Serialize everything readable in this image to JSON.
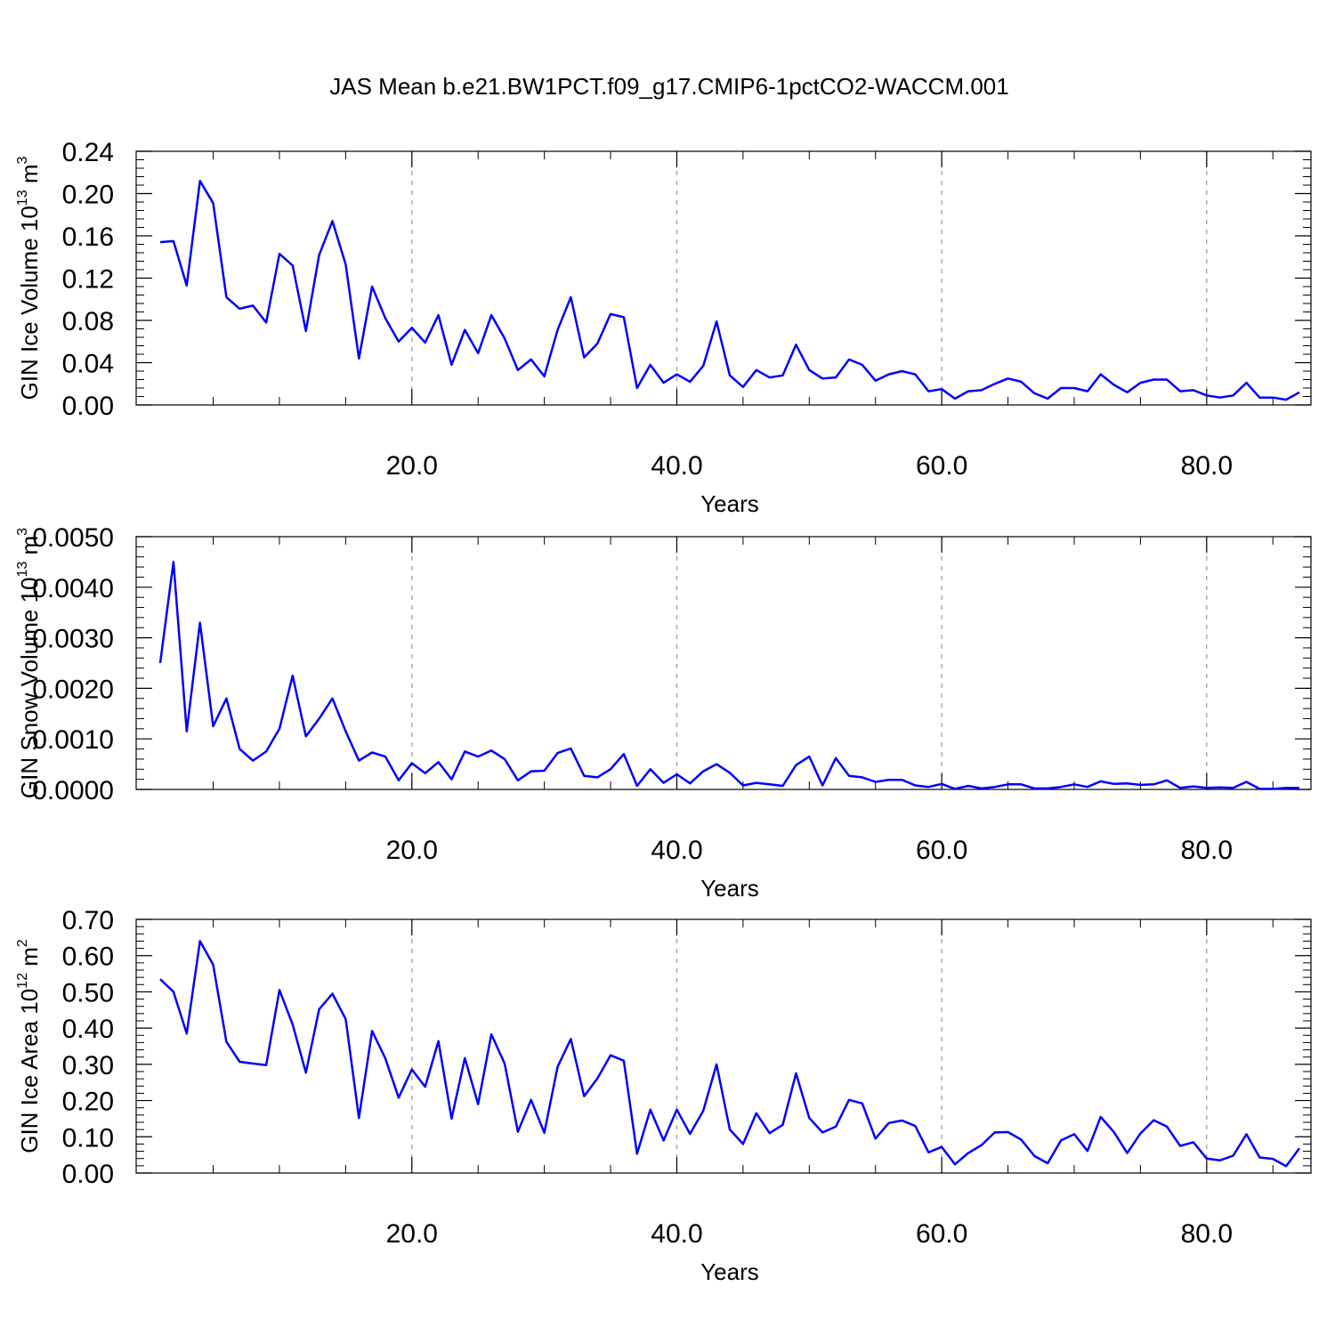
{
  "title": "JAS Mean b.e21.BW1PCT.f09_g17.CMIP6-1pctCO2-WACCM.001",
  "chart_data": [
    {
      "type": "line",
      "xlabel": "Years",
      "ylabel": "GIN Ice Volume 10",
      "ylabel_exp": "13",
      "ylabel_unit": " m",
      "ylabel_unit_exp": "3",
      "xlim": [
        1,
        87
      ],
      "ylim": [
        0,
        0.24
      ],
      "xticks": [
        20,
        40,
        60,
        80
      ],
      "xtick_labels": [
        "20.0",
        "40.0",
        "60.0",
        "80.0"
      ],
      "yticks": [
        0,
        0.04,
        0.08,
        0.12,
        0.16,
        0.2,
        0.24
      ],
      "ytick_labels": [
        "0.00",
        "0.04",
        "0.08",
        "0.12",
        "0.16",
        "0.20",
        "0.24"
      ],
      "grid": "dashed vertical at x ticks",
      "line_color": "#0000ff",
      "x": [
        1,
        2,
        3,
        4,
        5,
        6,
        7,
        8,
        9,
        10,
        11,
        12,
        13,
        14,
        15,
        16,
        17,
        18,
        19,
        20,
        21,
        22,
        23,
        24,
        25,
        26,
        27,
        28,
        29,
        30,
        31,
        32,
        33,
        34,
        35,
        36,
        37,
        38,
        39,
        40,
        41,
        42,
        43,
        44,
        45,
        46,
        47,
        48,
        49,
        50,
        51,
        52,
        53,
        54,
        55,
        56,
        57,
        58,
        59,
        60,
        61,
        62,
        63,
        64,
        65,
        66,
        67,
        68,
        69,
        70,
        71,
        72,
        73,
        74,
        75,
        76,
        77,
        78,
        79,
        80,
        81,
        82,
        83,
        84,
        85,
        86,
        87
      ],
      "values": [
        0.154,
        0.155,
        0.113,
        0.212,
        0.191,
        0.102,
        0.091,
        0.094,
        0.078,
        0.143,
        0.132,
        0.07,
        0.142,
        0.174,
        0.133,
        0.044,
        0.112,
        0.082,
        0.06,
        0.073,
        0.059,
        0.085,
        0.038,
        0.071,
        0.049,
        0.085,
        0.063,
        0.033,
        0.043,
        0.027,
        0.071,
        0.102,
        0.045,
        0.058,
        0.086,
        0.083,
        0.016,
        0.038,
        0.021,
        0.029,
        0.022,
        0.037,
        0.079,
        0.028,
        0.017,
        0.033,
        0.026,
        0.028,
        0.057,
        0.033,
        0.025,
        0.026,
        0.043,
        0.038,
        0.023,
        0.029,
        0.032,
        0.029,
        0.013,
        0.015,
        0.006,
        0.013,
        0.014,
        0.02,
        0.025,
        0.022,
        0.011,
        0.006,
        0.016,
        0.016,
        0.013,
        0.029,
        0.019,
        0.012,
        0.021,
        0.024,
        0.024,
        0.013,
        0.014,
        0.009,
        0.007,
        0.009,
        0.021,
        0.007,
        0.007,
        0.005,
        0.012
      ]
    },
    {
      "type": "line",
      "xlabel": "Years",
      "ylabel": "GIN Snow Volume 10",
      "ylabel_exp": "13",
      "ylabel_unit": " m",
      "ylabel_unit_exp": "3",
      "xlim": [
        1,
        87
      ],
      "ylim": [
        0,
        0.005
      ],
      "xticks": [
        20,
        40,
        60,
        80
      ],
      "xtick_labels": [
        "20.0",
        "40.0",
        "60.0",
        "80.0"
      ],
      "yticks": [
        0,
        0.001,
        0.002,
        0.003,
        0.004,
        0.005
      ],
      "ytick_labels": [
        "0.0000",
        "0.0010",
        "0.0020",
        "0.0030",
        "0.0040",
        "0.0050"
      ],
      "grid": "dashed vertical at x ticks",
      "line_color": "#0000ff",
      "x": [
        1,
        2,
        3,
        4,
        5,
        6,
        7,
        8,
        9,
        10,
        11,
        12,
        13,
        14,
        15,
        16,
        17,
        18,
        19,
        20,
        21,
        22,
        23,
        24,
        25,
        26,
        27,
        28,
        29,
        30,
        31,
        32,
        33,
        34,
        35,
        36,
        37,
        38,
        39,
        40,
        41,
        42,
        43,
        44,
        45,
        46,
        47,
        48,
        49,
        50,
        51,
        52,
        53,
        54,
        55,
        56,
        57,
        58,
        59,
        60,
        61,
        62,
        63,
        64,
        65,
        66,
        67,
        68,
        69,
        70,
        71,
        72,
        73,
        74,
        75,
        76,
        77,
        78,
        79,
        80,
        81,
        82,
        83,
        84,
        85,
        86,
        87
      ],
      "values": [
        0.0025,
        0.0045,
        0.00115,
        0.0033,
        0.00125,
        0.0018,
        0.0008,
        0.00057,
        0.00075,
        0.0012,
        0.00225,
        0.00105,
        0.0014,
        0.0018,
        0.00115,
        0.00057,
        0.00073,
        0.00065,
        0.00018,
        0.00052,
        0.00032,
        0.00054,
        0.0002,
        0.00075,
        0.00065,
        0.00077,
        0.0006,
        0.00018,
        0.00036,
        0.00037,
        0.00072,
        0.00081,
        0.00027,
        0.00024,
        0.0004,
        0.0007,
        7e-05,
        0.0004,
        0.00013,
        0.0003,
        0.00012,
        0.00036,
        0.0005,
        0.00033,
        8e-05,
        0.00013,
        0.0001,
        7e-05,
        0.00048,
        0.00065,
        8e-05,
        0.00062,
        0.00027,
        0.00024,
        0.00015,
        0.00019,
        0.00019,
        8e-05,
        5e-05,
        0.00011,
        1e-05,
        7e-05,
        2e-05,
        5e-05,
        0.0001,
        0.0001,
        2e-05,
        2e-05,
        5e-05,
        0.0001,
        5e-05,
        0.00016,
        0.00011,
        0.00012,
        9e-05,
        0.0001,
        0.00018,
        3e-05,
        6e-05,
        3e-05,
        4e-05,
        3e-05,
        0.00015,
        1e-05,
        1e-05,
        3e-05,
        3e-05
      ]
    },
    {
      "type": "line",
      "xlabel": "Years",
      "ylabel": "GIN Ice Area 10",
      "ylabel_exp": "12",
      "ylabel_unit": " m",
      "ylabel_unit_exp": "2",
      "xlim": [
        1,
        87
      ],
      "ylim": [
        0,
        0.7
      ],
      "xticks": [
        20,
        40,
        60,
        80
      ],
      "xtick_labels": [
        "20.0",
        "40.0",
        "60.0",
        "80.0"
      ],
      "yticks": [
        0,
        0.1,
        0.2,
        0.3,
        0.4,
        0.5,
        0.6,
        0.7
      ],
      "ytick_labels": [
        "0.00",
        "0.10",
        "0.20",
        "0.30",
        "0.40",
        "0.50",
        "0.60",
        "0.70"
      ],
      "grid": "dashed vertical at x ticks",
      "line_color": "#0000ff",
      "x": [
        1,
        2,
        3,
        4,
        5,
        6,
        7,
        8,
        9,
        10,
        11,
        12,
        13,
        14,
        15,
        16,
        17,
        18,
        19,
        20,
        21,
        22,
        23,
        24,
        25,
        26,
        27,
        28,
        29,
        30,
        31,
        32,
        33,
        34,
        35,
        36,
        37,
        38,
        39,
        40,
        41,
        42,
        43,
        44,
        45,
        46,
        47,
        48,
        49,
        50,
        51,
        52,
        53,
        54,
        55,
        56,
        57,
        58,
        59,
        60,
        61,
        62,
        63,
        64,
        65,
        66,
        67,
        68,
        69,
        70,
        71,
        72,
        73,
        74,
        75,
        76,
        77,
        78,
        79,
        80,
        81,
        82,
        83,
        84,
        85,
        86,
        87
      ],
      "values": [
        0.535,
        0.5,
        0.385,
        0.64,
        0.575,
        0.362,
        0.307,
        0.302,
        0.298,
        0.505,
        0.41,
        0.277,
        0.452,
        0.495,
        0.425,
        0.152,
        0.392,
        0.316,
        0.208,
        0.286,
        0.238,
        0.364,
        0.15,
        0.317,
        0.19,
        0.383,
        0.302,
        0.114,
        0.202,
        0.111,
        0.293,
        0.37,
        0.212,
        0.261,
        0.325,
        0.31,
        0.053,
        0.175,
        0.09,
        0.175,
        0.108,
        0.172,
        0.3,
        0.12,
        0.08,
        0.165,
        0.11,
        0.133,
        0.275,
        0.152,
        0.112,
        0.128,
        0.202,
        0.192,
        0.095,
        0.138,
        0.145,
        0.13,
        0.057,
        0.072,
        0.024,
        0.055,
        0.077,
        0.112,
        0.113,
        0.092,
        0.047,
        0.027,
        0.09,
        0.107,
        0.061,
        0.155,
        0.113,
        0.055,
        0.109,
        0.146,
        0.128,
        0.075,
        0.085,
        0.04,
        0.035,
        0.048,
        0.107,
        0.043,
        0.039,
        0.019,
        0.068
      ]
    }
  ]
}
